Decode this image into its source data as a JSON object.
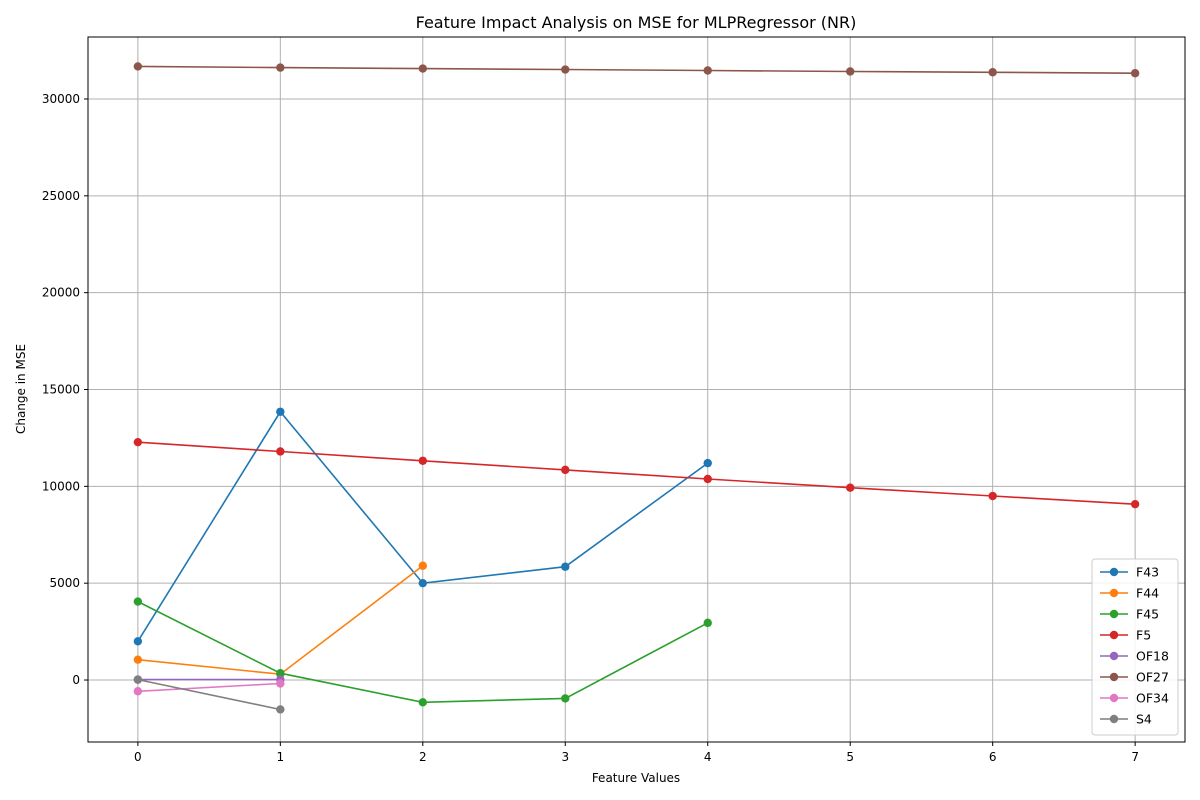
{
  "chart_data": {
    "type": "line",
    "title": "Feature Impact Analysis on MSE for MLPRegressor (NR)",
    "xlabel": "Feature Values",
    "ylabel": "Change in MSE",
    "xlim": [
      -0.35,
      7.35
    ],
    "ylim": [
      -3200,
      33200
    ],
    "xticks": [
      0,
      1,
      2,
      3,
      4,
      5,
      6,
      7
    ],
    "yticks": [
      0,
      5000,
      10000,
      15000,
      20000,
      25000,
      30000
    ],
    "grid": true,
    "legend_position": "lower right",
    "series": [
      {
        "name": "F43",
        "color": "#1f77b4",
        "x": [
          0,
          1,
          2,
          3,
          4
        ],
        "y": [
          2000,
          13850,
          5000,
          5850,
          11200
        ]
      },
      {
        "name": "F44",
        "color": "#ff7f0e",
        "x": [
          0,
          1,
          2
        ],
        "y": [
          1050,
          300,
          5900
        ]
      },
      {
        "name": "F45",
        "color": "#2ca02c",
        "x": [
          0,
          1,
          2,
          3,
          4
        ],
        "y": [
          4050,
          350,
          -1150,
          -950,
          2950
        ]
      },
      {
        "name": "F5",
        "color": "#d62728",
        "x": [
          0,
          1,
          2,
          3,
          4,
          5,
          6,
          7
        ],
        "y": [
          12280,
          11800,
          11320,
          10850,
          10380,
          9930,
          9500,
          9080
        ]
      },
      {
        "name": "OF18",
        "color": "#9467bd",
        "x": [
          0,
          1
        ],
        "y": [
          20,
          20
        ]
      },
      {
        "name": "OF27",
        "color": "#8c564b",
        "x": [
          0,
          1,
          2,
          3,
          4,
          5,
          6,
          7
        ],
        "y": [
          31680,
          31620,
          31570,
          31520,
          31470,
          31420,
          31380,
          31330
        ]
      },
      {
        "name": "OF34",
        "color": "#e377c2",
        "x": [
          0,
          1
        ],
        "y": [
          -580,
          -180
        ]
      },
      {
        "name": "S4",
        "color": "#7f7f7f",
        "x": [
          0,
          1
        ],
        "y": [
          20,
          -1520
        ]
      }
    ]
  }
}
